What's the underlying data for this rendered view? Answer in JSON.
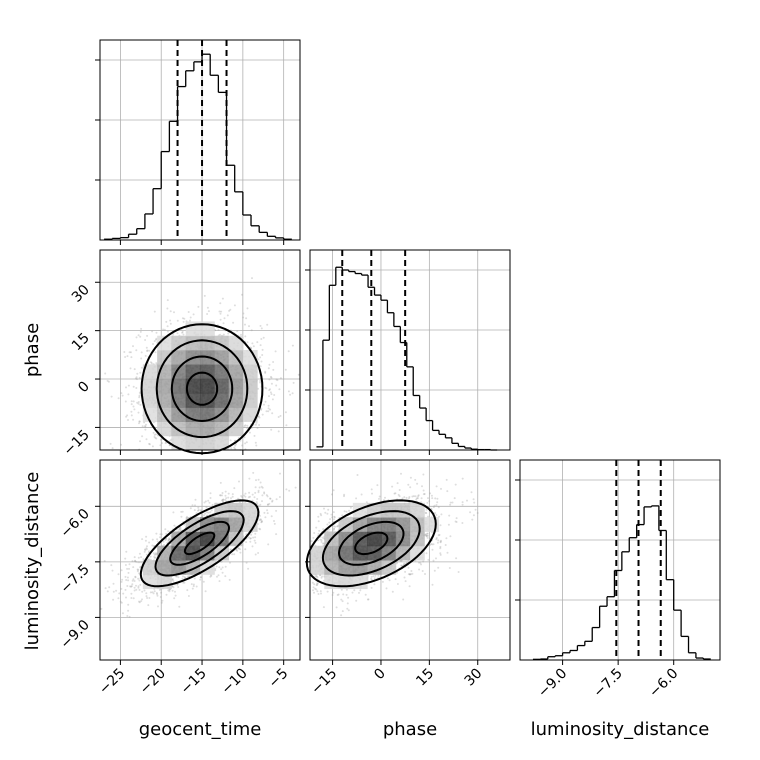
{
  "chart_data": {
    "type": "corner",
    "parameters": [
      "geocent_time",
      "phase",
      "luminosity_distance"
    ],
    "colors": {
      "hist": "#000000",
      "grid": "#b0b0b0",
      "scatter": "#a0a0a0",
      "frame": "#000000"
    },
    "grid": true,
    "x_ticks": {
      "geocent_time": [
        "−25",
        "−20",
        "−15",
        "−10",
        "−5"
      ],
      "phase": [
        "−15",
        "0",
        "15",
        "30"
      ],
      "luminosity_distance": [
        "−9.0",
        "−7.5",
        "−6.0"
      ]
    },
    "y_ticks": {
      "phase": [
        "−15",
        "0",
        "15",
        "30"
      ],
      "luminosity_distance": [
        "−9.0",
        "−7.5",
        "−6.0"
      ]
    },
    "ranges": {
      "geocent_time": [
        -27.5,
        -3.0
      ],
      "phase": [
        -22.0,
        40.0
      ],
      "luminosity_distance": [
        -10.15,
        -4.75
      ]
    },
    "histograms": {
      "geocent_time": {
        "bin_edges": [
          -27.0,
          -26.0,
          -25.0,
          -24.0,
          -23.0,
          -22.0,
          -21.0,
          -20.0,
          -19.0,
          -18.0,
          -17.0,
          -16.0,
          -15.0,
          -14.0,
          -13.0,
          -12.0,
          -11.0,
          -10.0,
          -9.0,
          -8.0,
          -7.0,
          -6.0,
          -5.0,
          -4.0
        ],
        "counts": [
          0.3,
          0.6,
          0.9,
          2.2,
          4.3,
          9.9,
          19.5,
          33.6,
          45.1,
          58.3,
          64.3,
          67.7,
          70.6,
          62.6,
          56.1,
          28.4,
          18.3,
          9.5,
          5.4,
          2.9,
          1.4,
          0.8,
          0.3
        ],
        "quantiles": [
          -18.0,
          -15.0,
          -12.0
        ],
        "ylim": [
          0,
          76
        ]
      },
      "phase": {
        "bin_edges": [
          -20.0,
          -18.0,
          -16.0,
          -14.0,
          -12.0,
          -10.0,
          -8.0,
          -6.0,
          -4.0,
          -2.0,
          0.0,
          2.0,
          4.0,
          6.0,
          8.0,
          10.0,
          12.0,
          14.0,
          16.0,
          18.0,
          20.0,
          22.0,
          24.0,
          26.0,
          28.0,
          30.0,
          32.0,
          34.0,
          36.0
        ],
        "counts": [
          0.8,
          28.0,
          42.0,
          46.6,
          45.9,
          45.5,
          45.0,
          44.6,
          41.5,
          39.5,
          38.2,
          35.0,
          31.5,
          27.4,
          21.2,
          13.9,
          10.7,
          7.5,
          5.0,
          4.0,
          3.1,
          1.7,
          0.9,
          0.5,
          0.2,
          0.1,
          0.1,
          0.0
        ],
        "quantiles": [
          -12.0,
          -3.0,
          7.5
        ],
        "ylim": [
          0,
          51
        ]
      },
      "luminosity_distance": {
        "bin_edges": [
          -9.8,
          -9.6,
          -9.4,
          -9.2,
          -9.0,
          -8.8,
          -8.6,
          -8.4,
          -8.2,
          -8.0,
          -7.8,
          -7.6,
          -7.4,
          -7.2,
          -7.0,
          -6.8,
          -6.6,
          -6.4,
          -6.2,
          -6.0,
          -5.8,
          -5.6,
          -5.4,
          -5.2,
          -5.0
        ],
        "counts": [
          0.2,
          0.3,
          1.0,
          1.3,
          2.2,
          2.9,
          4.4,
          5.7,
          9.9,
          16.4,
          19.3,
          27.3,
          33.0,
          37.3,
          41.3,
          46.7,
          47.0,
          39.5,
          24.5,
          15.2,
          7.2,
          2.2,
          0.6,
          0.3
        ],
        "quantiles": [
          -7.55,
          -6.95,
          -6.35
        ],
        "ylim": [
          0,
          61
        ]
      }
    },
    "scatter_2d": [
      {
        "x": "geocent_time",
        "y": "phase",
        "center": [
          -15.0,
          -3.0
        ],
        "std": [
          3.7,
          10.0
        ],
        "corr": 0.0,
        "n": 2600
      },
      {
        "x": "geocent_time",
        "y": "luminosity_distance",
        "center": [
          -15.3,
          -7.0
        ],
        "std": [
          3.6,
          0.58
        ],
        "corr": 0.72,
        "n": 2600
      },
      {
        "x": "phase",
        "y": "luminosity_distance",
        "center": [
          -3.0,
          -7.0
        ],
        "std": [
          10.0,
          0.58
        ],
        "corr": 0.45,
        "n": 2600
      }
    ]
  }
}
